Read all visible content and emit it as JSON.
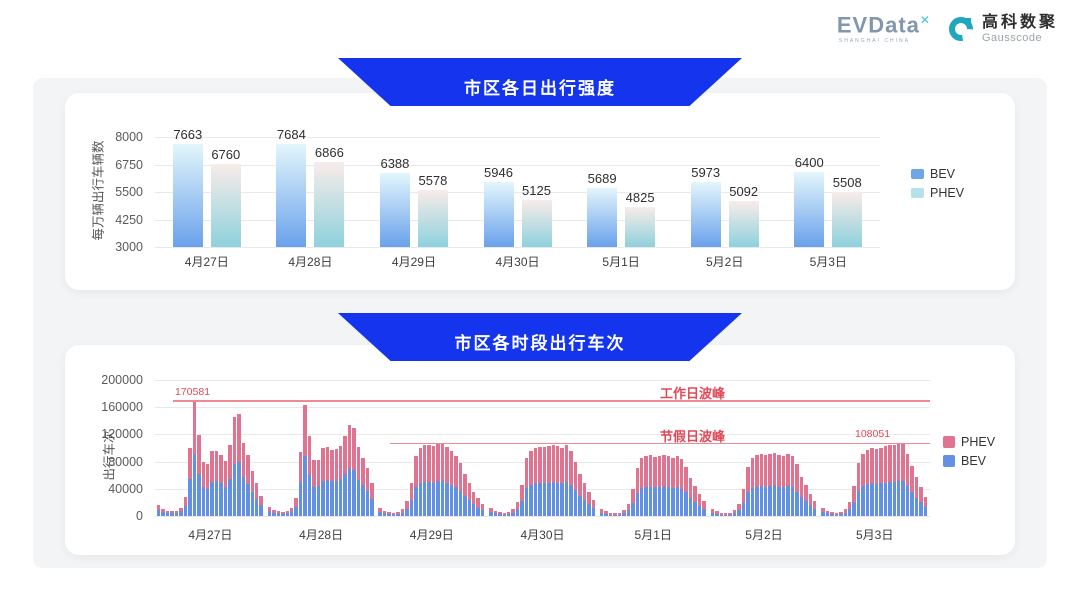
{
  "logo": {
    "evdata": "EVData",
    "evdata_sup": "✕",
    "evdata_tagline": "SHANGHAI CHINA",
    "gausscode_cn": "高科数聚",
    "gausscode_en": "Gausscode",
    "gauss_icon_color": "#1fa7bd"
  },
  "chart_data": [
    {
      "id": "daily-intensity",
      "type": "bar",
      "title": "市区各日出行强度",
      "ylabel": "每万辆出行车辆数",
      "ylim": [
        3000,
        8000
      ],
      "yticks": [
        8000,
        6750,
        5500,
        4250,
        3000
      ],
      "grid": true,
      "legend_position": "right",
      "categories": [
        "4月27日",
        "4月28日",
        "4月29日",
        "4月30日",
        "5月1日",
        "5月2日",
        "5月3日"
      ],
      "series": [
        {
          "name": "BEV",
          "gradient_top": "#e3f6fc",
          "gradient_bottom": "#69a1eb",
          "values": [
            7663,
            7684,
            6388,
            5946,
            5689,
            5973,
            6400
          ]
        },
        {
          "name": "PHEV",
          "gradient_top": "#f8ece9",
          "gradient_bottom": "#8ed1dc",
          "values": [
            6760,
            6866,
            5578,
            5125,
            4825,
            5092,
            5508
          ]
        }
      ],
      "legend": [
        {
          "label": "BEV",
          "color": "#6ea6ea"
        },
        {
          "label": "PHEV",
          "color": "#b5e2ea"
        }
      ]
    },
    {
      "id": "hourly-trips",
      "type": "stacked-bar",
      "title": "市区各时段出行车次",
      "ylabel": "出行车次",
      "ylim": [
        0,
        200000
      ],
      "yticks": [
        200000,
        160000,
        120000,
        80000,
        40000,
        0
      ],
      "grid": true,
      "legend_position": "right",
      "categories": [
        "4月27日",
        "4月28日",
        "4月29日",
        "4月30日",
        "5月1日",
        "5月2日",
        "5月3日"
      ],
      "colors": {
        "BEV": "#6290e2",
        "PHEV": "#e0738f"
      },
      "legend": [
        {
          "label": "PHEV",
          "color": "#e0738f"
        },
        {
          "label": "BEV",
          "color": "#6290e2"
        }
      ],
      "annotations": [
        {
          "label": "工作日波峰",
          "value": 170581,
          "value_label": "170581",
          "line_color": "#ec8b94",
          "text_color": "#e04a58"
        },
        {
          "label": "节假日波峰",
          "value": 108051,
          "value_label": "108051",
          "line_color": "#ec8b94",
          "text_color": "#e04a58"
        }
      ],
      "days": [
        {
          "date": "4月27日",
          "bev": [
            9000,
            6000,
            5000,
            4000,
            4000,
            7000,
            15000,
            54000,
            91000,
            62000,
            42000,
            40000,
            50000,
            51000,
            48000,
            43000,
            55000,
            76000,
            80000,
            57000,
            47000,
            35000,
            25000,
            16000
          ],
          "phev": [
            7000,
            4000,
            3000,
            3000,
            3000,
            5000,
            13000,
            46000,
            79581,
            57000,
            38000,
            36000,
            45000,
            45000,
            42000,
            38000,
            50000,
            69000,
            70000,
            51000,
            42000,
            31000,
            23000,
            14000
          ]
        },
        {
          "date": "4月28日",
          "bev": [
            8000,
            5000,
            4000,
            3000,
            4000,
            7000,
            14000,
            50000,
            88000,
            61000,
            43000,
            44000,
            52000,
            53000,
            51000,
            52000,
            54000,
            62000,
            71000,
            68000,
            53000,
            45000,
            37000,
            25000
          ],
          "phev": [
            6000,
            4000,
            3000,
            3000,
            3000,
            5000,
            12000,
            44000,
            76000,
            56000,
            39000,
            39000,
            48000,
            48000,
            46000,
            47000,
            49000,
            56000,
            63000,
            61000,
            48000,
            41000,
            33000,
            23000
          ]
        },
        {
          "date": "4月29日",
          "bev": [
            6000,
            4000,
            3000,
            2000,
            3000,
            5000,
            11000,
            23000,
            42000,
            48000,
            50000,
            50000,
            49000,
            51000,
            51000,
            49000,
            46000,
            42000,
            37000,
            30000,
            23000,
            17000,
            12000,
            9000
          ],
          "phev": [
            6000,
            4000,
            3000,
            3000,
            3000,
            5000,
            11000,
            25000,
            46000,
            52000,
            54000,
            55000,
            54000,
            55000,
            56000,
            53000,
            50000,
            46000,
            41000,
            32000,
            25000,
            19000,
            14000,
            9000
          ]
        },
        {
          "date": "4月30日",
          "bev": [
            6000,
            4000,
            3000,
            2000,
            3000,
            5000,
            10000,
            22000,
            41000,
            46000,
            48000,
            49000,
            48000,
            49000,
            50000,
            49000,
            48000,
            50000,
            46000,
            38000,
            30000,
            23000,
            17000,
            12000
          ],
          "phev": [
            6000,
            4000,
            3000,
            3000,
            3000,
            5000,
            10000,
            23000,
            44000,
            49000,
            52000,
            53000,
            53000,
            54000,
            55000,
            54000,
            52000,
            54000,
            50000,
            42000,
            32000,
            25000,
            19000,
            12000
          ]
        },
        {
          "date": "5月1日",
          "bev": [
            5000,
            3000,
            2000,
            2000,
            2000,
            4000,
            9000,
            19000,
            34000,
            41000,
            42000,
            43000,
            42000,
            43000,
            43000,
            42000,
            41000,
            42000,
            40000,
            35000,
            27000,
            21000,
            15000,
            11000
          ],
          "phev": [
            6000,
            4000,
            3000,
            3000,
            3000,
            5000,
            9000,
            21000,
            36000,
            44000,
            46000,
            47000,
            45000,
            46000,
            47000,
            46000,
            45000,
            46000,
            44000,
            37000,
            29000,
            23000,
            17000,
            11000
          ]
        },
        {
          "date": "5月2日",
          "bev": [
            5000,
            3000,
            2000,
            2000,
            2000,
            4000,
            9000,
            19000,
            35000,
            41000,
            43000,
            44000,
            43000,
            44000,
            45000,
            43000,
            42000,
            44000,
            42000,
            36000,
            28000,
            22000,
            16000,
            11000
          ],
          "phev": [
            6000,
            4000,
            3000,
            3000,
            3000,
            5000,
            9000,
            21000,
            37000,
            45000,
            47000,
            48000,
            47000,
            47000,
            48000,
            47000,
            46000,
            47000,
            46000,
            40000,
            30000,
            23000,
            17000,
            11000
          ]
        },
        {
          "date": "5月3日",
          "bev": [
            6000,
            4000,
            3000,
            2000,
            3000,
            5000,
            10000,
            21000,
            37000,
            44000,
            47000,
            48000,
            47000,
            48000,
            49000,
            50000,
            50000,
            52000,
            51000,
            44000,
            36000,
            27000,
            20000,
            13000
          ],
          "phev": [
            6000,
            4000,
            3000,
            3000,
            3000,
            5000,
            10000,
            23000,
            41000,
            48000,
            50000,
            52000,
            51000,
            52000,
            54000,
            55000,
            54000,
            56051,
            55000,
            48000,
            38000,
            30000,
            22000,
            15000
          ]
        }
      ]
    }
  ]
}
